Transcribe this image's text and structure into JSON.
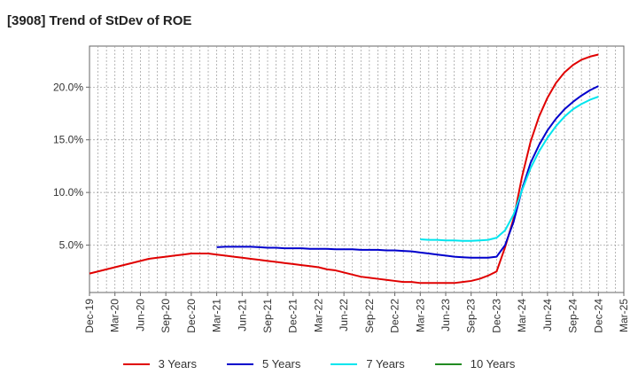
{
  "chart_data": {
    "type": "line",
    "title": "[3908]  Trend of StDev of ROE",
    "xlabel": "",
    "ylabel": "",
    "y_tick_labels": [
      "5.0%",
      "10.0%",
      "15.0%",
      "20.0%"
    ],
    "y_ticks": [
      5,
      10,
      15,
      20
    ],
    "ylim": [
      0.5,
      23.9
    ],
    "x_tick_labels": [
      "Dec-19",
      "Mar-20",
      "Jun-20",
      "Sep-20",
      "Dec-20",
      "Mar-21",
      "Jun-21",
      "Sep-21",
      "Dec-21",
      "Mar-22",
      "Jun-22",
      "Sep-22",
      "Dec-22",
      "Mar-23",
      "Jun-23",
      "Sep-23",
      "Dec-23",
      "Mar-24",
      "Jun-24",
      "Sep-24",
      "Dec-24",
      "Mar-25"
    ],
    "grid": true,
    "legend_position": "bottom",
    "series": [
      {
        "name": "3 Years",
        "color": "#e00000",
        "points": [
          [
            "Dec-19",
            2.3
          ],
          [
            "Jan-20",
            2.5
          ],
          [
            "Feb-20",
            2.7
          ],
          [
            "Mar-20",
            2.9
          ],
          [
            "Apr-20",
            3.1
          ],
          [
            "May-20",
            3.3
          ],
          [
            "Jun-20",
            3.5
          ],
          [
            "Jul-20",
            3.7
          ],
          [
            "Aug-20",
            3.8
          ],
          [
            "Sep-20",
            3.9
          ],
          [
            "Oct-20",
            4.0
          ],
          [
            "Nov-20",
            4.1
          ],
          [
            "Dec-20",
            4.2
          ],
          [
            "Jan-21",
            4.2
          ],
          [
            "Feb-21",
            4.2
          ],
          [
            "Mar-21",
            4.1
          ],
          [
            "Apr-21",
            4.0
          ],
          [
            "May-21",
            3.9
          ],
          [
            "Jun-21",
            3.8
          ],
          [
            "Jul-21",
            3.7
          ],
          [
            "Aug-21",
            3.6
          ],
          [
            "Sep-21",
            3.5
          ],
          [
            "Oct-21",
            3.4
          ],
          [
            "Nov-21",
            3.3
          ],
          [
            "Dec-21",
            3.2
          ],
          [
            "Jan-22",
            3.1
          ],
          [
            "Feb-22",
            3.0
          ],
          [
            "Mar-22",
            2.9
          ],
          [
            "Apr-22",
            2.7
          ],
          [
            "May-22",
            2.6
          ],
          [
            "Jun-22",
            2.4
          ],
          [
            "Jul-22",
            2.2
          ],
          [
            "Aug-22",
            2.0
          ],
          [
            "Sep-22",
            1.9
          ],
          [
            "Oct-22",
            1.8
          ],
          [
            "Nov-22",
            1.7
          ],
          [
            "Dec-22",
            1.6
          ],
          [
            "Jan-23",
            1.5
          ],
          [
            "Feb-23",
            1.5
          ],
          [
            "Mar-23",
            1.4
          ],
          [
            "Apr-23",
            1.4
          ],
          [
            "May-23",
            1.4
          ],
          [
            "Jun-23",
            1.4
          ],
          [
            "Jul-23",
            1.4
          ],
          [
            "Aug-23",
            1.5
          ],
          [
            "Sep-23",
            1.6
          ],
          [
            "Oct-23",
            1.8
          ],
          [
            "Nov-23",
            2.1
          ],
          [
            "Dec-23",
            2.5
          ],
          [
            "Jan-24",
            4.8
          ],
          [
            "Feb-24",
            7.5
          ],
          [
            "Mar-24",
            11.5
          ],
          [
            "Apr-24",
            14.8
          ],
          [
            "May-24",
            17.2
          ],
          [
            "Jun-24",
            19.0
          ],
          [
            "Jul-24",
            20.4
          ],
          [
            "Aug-24",
            21.4
          ],
          [
            "Sep-24",
            22.1
          ],
          [
            "Oct-24",
            22.6
          ],
          [
            "Nov-24",
            22.9
          ],
          [
            "Dec-24",
            23.1
          ]
        ]
      },
      {
        "name": "5 Years",
        "color": "#0000cc",
        "points": [
          [
            "Mar-21",
            4.8
          ],
          [
            "Apr-21",
            4.85
          ],
          [
            "May-21",
            4.85
          ],
          [
            "Jun-21",
            4.85
          ],
          [
            "Jul-21",
            4.85
          ],
          [
            "Aug-21",
            4.8
          ],
          [
            "Sep-21",
            4.75
          ],
          [
            "Oct-21",
            4.75
          ],
          [
            "Nov-21",
            4.7
          ],
          [
            "Dec-21",
            4.7
          ],
          [
            "Jan-22",
            4.7
          ],
          [
            "Feb-22",
            4.65
          ],
          [
            "Mar-22",
            4.65
          ],
          [
            "Apr-22",
            4.65
          ],
          [
            "May-22",
            4.6
          ],
          [
            "Jun-22",
            4.6
          ],
          [
            "Jul-22",
            4.6
          ],
          [
            "Aug-22",
            4.55
          ],
          [
            "Sep-22",
            4.55
          ],
          [
            "Oct-22",
            4.55
          ],
          [
            "Nov-22",
            4.5
          ],
          [
            "Dec-22",
            4.5
          ],
          [
            "Jan-23",
            4.45
          ],
          [
            "Feb-23",
            4.4
          ],
          [
            "Mar-23",
            4.3
          ],
          [
            "Apr-23",
            4.2
          ],
          [
            "May-23",
            4.1
          ],
          [
            "Jun-23",
            4.0
          ],
          [
            "Jul-23",
            3.9
          ],
          [
            "Aug-23",
            3.85
          ],
          [
            "Sep-23",
            3.8
          ],
          [
            "Oct-23",
            3.8
          ],
          [
            "Nov-23",
            3.8
          ],
          [
            "Dec-23",
            3.9
          ],
          [
            "Jan-24",
            5.0
          ],
          [
            "Feb-24",
            7.2
          ],
          [
            "Mar-24",
            10.3
          ],
          [
            "Apr-24",
            12.8
          ],
          [
            "May-24",
            14.5
          ],
          [
            "Jun-24",
            15.9
          ],
          [
            "Jul-24",
            17.0
          ],
          [
            "Aug-24",
            17.9
          ],
          [
            "Sep-24",
            18.6
          ],
          [
            "Oct-24",
            19.2
          ],
          [
            "Nov-24",
            19.7
          ],
          [
            "Dec-24",
            20.1
          ]
        ]
      },
      {
        "name": "7 Years",
        "color": "#00e5ee",
        "points": [
          [
            "Mar-23",
            5.55
          ],
          [
            "Apr-23",
            5.5
          ],
          [
            "May-23",
            5.5
          ],
          [
            "Jun-23",
            5.45
          ],
          [
            "Jul-23",
            5.45
          ],
          [
            "Aug-23",
            5.4
          ],
          [
            "Sep-23",
            5.4
          ],
          [
            "Oct-23",
            5.45
          ],
          [
            "Nov-23",
            5.5
          ],
          [
            "Dec-23",
            5.7
          ],
          [
            "Jan-24",
            6.4
          ],
          [
            "Feb-24",
            7.9
          ],
          [
            "Mar-24",
            10.2
          ],
          [
            "Apr-24",
            12.3
          ],
          [
            "May-24",
            13.9
          ],
          [
            "Jun-24",
            15.2
          ],
          [
            "Jul-24",
            16.3
          ],
          [
            "Aug-24",
            17.2
          ],
          [
            "Sep-24",
            17.9
          ],
          [
            "Oct-24",
            18.4
          ],
          [
            "Nov-24",
            18.8
          ],
          [
            "Dec-24",
            19.1
          ]
        ]
      },
      {
        "name": "10 Years",
        "color": "#228b22",
        "points": []
      }
    ]
  }
}
